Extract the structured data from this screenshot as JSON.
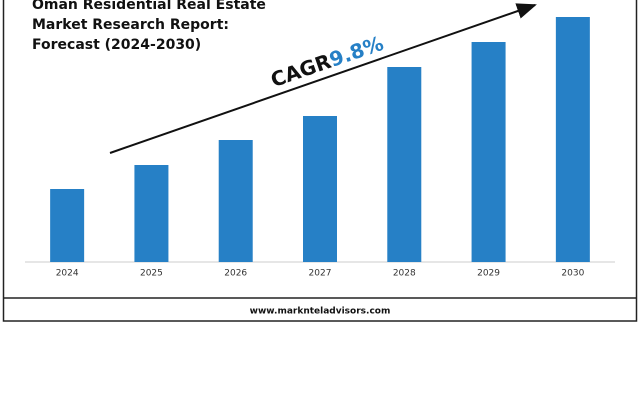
{
  "chart_data": {
    "type": "bar",
    "title": [
      "Oman Residential Real Estate",
      "Market Research Report:",
      "Forecast (2024-2030)"
    ],
    "annotation": {
      "label": "CAGR",
      "value": "9.8%"
    },
    "categories": [
      "2024",
      "2025",
      "2026",
      "2027",
      "2028",
      "2029",
      "2030"
    ],
    "values": [
      73,
      97,
      122,
      146,
      195,
      220,
      245
    ],
    "color": "#2680c6",
    "source": "www.marknteladvisors.com"
  }
}
